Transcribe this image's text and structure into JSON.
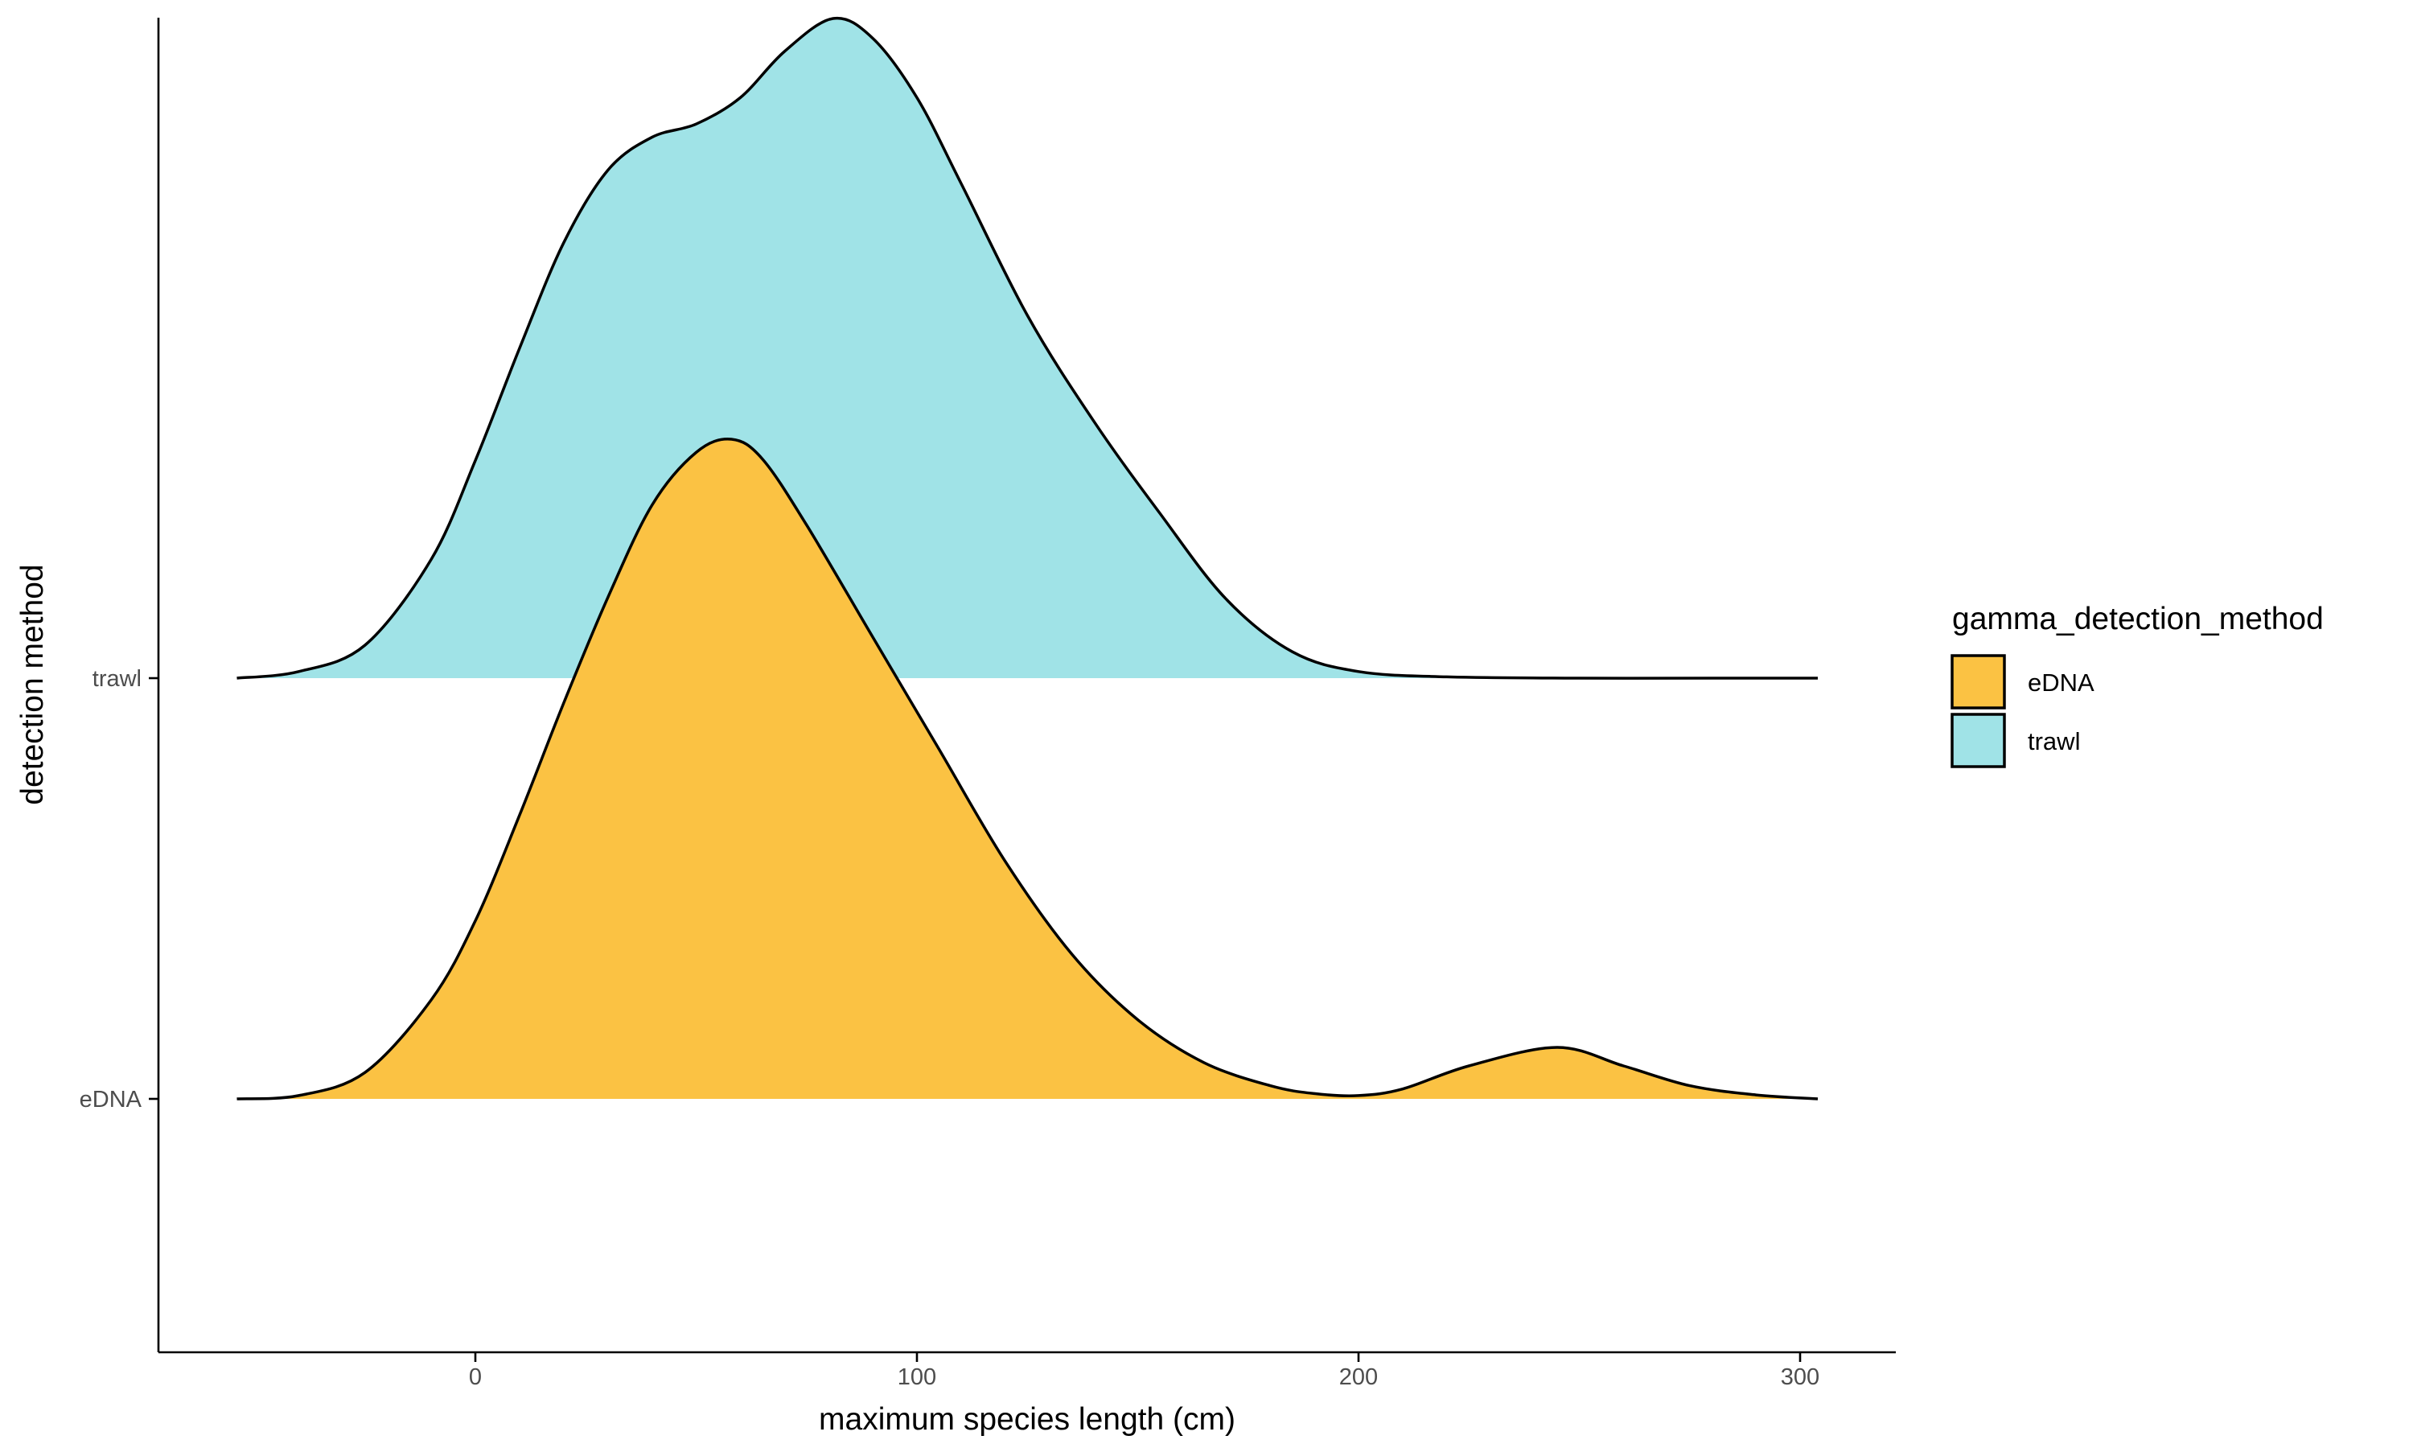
{
  "chart_data": {
    "type": "area",
    "title": "",
    "xlabel": "maximum species length (cm)",
    "ylabel": "detection method",
    "xlim": [
      -72,
      322
    ],
    "x_ticks": [
      0,
      100,
      200,
      300
    ],
    "x_tick_labels": [
      "0",
      "100",
      "200",
      "300"
    ],
    "categories": [
      "eDNA",
      "trawl"
    ],
    "legend": {
      "title": "gamma_detection_method",
      "position": "right",
      "entries": [
        {
          "label": "eDNA",
          "color": "#FBC243"
        },
        {
          "label": "trawl",
          "color": "#A0E3E7"
        }
      ]
    },
    "grid": false,
    "series": [
      {
        "name": "eDNA",
        "category": "eDNA",
        "color": "#FBC243",
        "x": [
          -54,
          -40,
          -25,
          -10,
          0,
          10,
          20,
          30,
          40,
          50,
          58,
          65,
          75,
          90,
          105,
          120,
          135,
          150,
          165,
          180,
          190,
          200,
          210,
          225,
          245,
          260,
          275,
          290,
          304
        ],
        "density": [
          0.0,
          0.005,
          0.04,
          0.15,
          0.27,
          0.43,
          0.6,
          0.76,
          0.9,
          0.98,
          1.0,
          0.97,
          0.87,
          0.7,
          0.53,
          0.36,
          0.22,
          0.12,
          0.055,
          0.02,
          0.008,
          0.005,
          0.015,
          0.05,
          0.078,
          0.05,
          0.02,
          0.006,
          0.0
        ]
      },
      {
        "name": "trawl",
        "category": "trawl",
        "color": "#A0E3E7",
        "x": [
          -54,
          -40,
          -25,
          -10,
          0,
          10,
          20,
          30,
          40,
          50,
          60,
          70,
          81,
          90,
          100,
          110,
          125,
          140,
          155,
          170,
          185,
          200,
          220,
          250,
          280,
          304
        ],
        "density": [
          0.0,
          0.01,
          0.05,
          0.18,
          0.33,
          0.5,
          0.66,
          0.77,
          0.82,
          0.84,
          0.88,
          0.95,
          1.0,
          0.97,
          0.88,
          0.75,
          0.55,
          0.39,
          0.25,
          0.12,
          0.04,
          0.01,
          0.002,
          0.0,
          0.0,
          0.0
        ]
      }
    ]
  }
}
